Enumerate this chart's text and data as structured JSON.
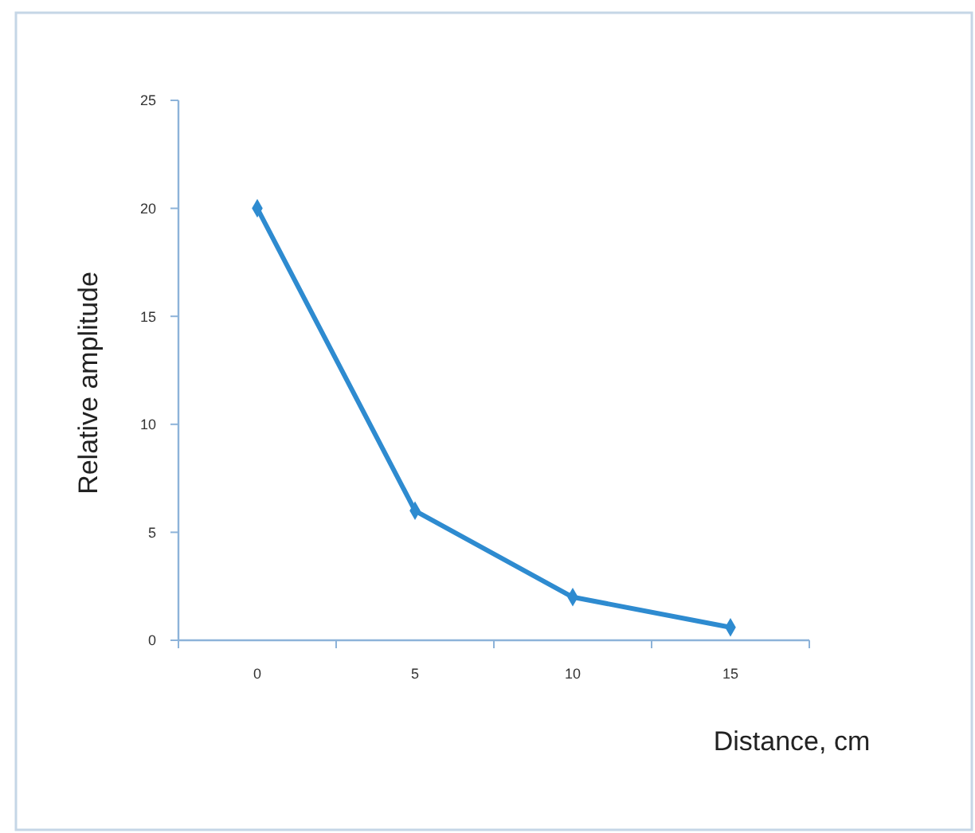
{
  "chart_data": {
    "type": "line",
    "xlabel": "Distance, cm",
    "ylabel": "Relative amplitude",
    "categories": [
      "0",
      "5",
      "10",
      "15"
    ],
    "series": [
      {
        "color": "#2e8bd0",
        "values": [
          20,
          6,
          2,
          0.6
        ]
      }
    ],
    "ylim": [
      0,
      25
    ],
    "yticks": [
      0,
      5,
      10,
      15,
      20,
      25
    ],
    "grid": false,
    "marker": "diamond",
    "line_style": "solid"
  }
}
